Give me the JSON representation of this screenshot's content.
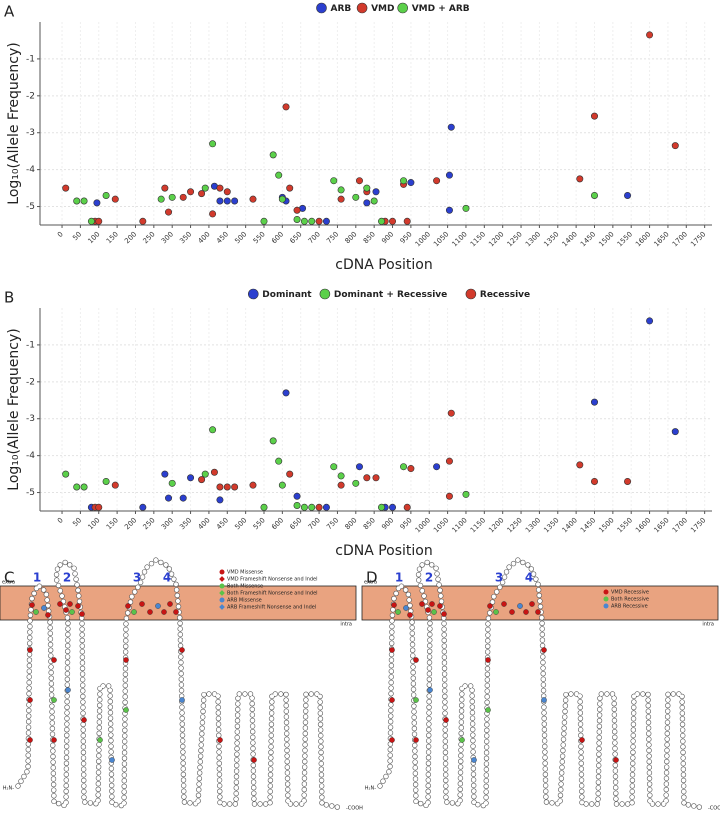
{
  "panel_labels": [
    "A",
    "B",
    "C",
    "D"
  ],
  "chart_data": [
    {
      "type": "scatter",
      "legend": "top",
      "grid": true,
      "xlabel": "cDNA Position",
      "ylabel": "Log₁₀(Allele Frequency)",
      "xlim": [
        -60,
        1770
      ],
      "ylim": [
        -5.5,
        0
      ],
      "xticks": [
        0,
        50,
        100,
        150,
        200,
        250,
        300,
        350,
        400,
        450,
        500,
        550,
        600,
        650,
        700,
        750,
        800,
        850,
        900,
        950,
        1000,
        1050,
        1100,
        1150,
        1200,
        1250,
        1300,
        1350,
        1400,
        1450,
        1500,
        1550,
        1600,
        1650,
        1700,
        1750
      ],
      "yticks": [
        -1,
        -2,
        -3,
        -4,
        -5
      ],
      "series": [
        {
          "name": "ARB",
          "color": "#2b3fcf",
          "x": [
            95,
            415,
            430,
            450,
            470,
            600,
            610,
            655,
            720,
            830,
            855,
            950,
            1055,
            1060,
            1055,
            1540
          ],
          "values": [
            -4.9,
            -4.45,
            -4.85,
            -4.85,
            -4.85,
            -4.75,
            -4.85,
            -5.05,
            -5.4,
            -4.9,
            -4.6,
            -4.35,
            -4.15,
            -2.85,
            -5.1,
            -4.7
          ]
        },
        {
          "name": "VMD",
          "color": "#d23a2c",
          "x": [
            10,
            90,
            100,
            145,
            220,
            280,
            290,
            330,
            350,
            380,
            410,
            430,
            450,
            520,
            610,
            620,
            640,
            700,
            760,
            810,
            830,
            880,
            900,
            930,
            940,
            1020,
            1410,
            1450,
            1600,
            1670
          ],
          "values": [
            -4.5,
            -5.4,
            -5.4,
            -4.8,
            -5.4,
            -4.5,
            -5.15,
            -4.75,
            -4.6,
            -4.65,
            -5.2,
            -4.5,
            -4.6,
            -4.8,
            -2.3,
            -4.5,
            -5.1,
            -5.4,
            -4.8,
            -4.3,
            -4.6,
            -5.4,
            -5.4,
            -4.4,
            -5.4,
            -4.3,
            -4.25,
            -2.55,
            -0.35,
            -3.35
          ]
        },
        {
          "name": "VMD + ARB",
          "color": "#5bd04a",
          "x": [
            40,
            60,
            80,
            120,
            270,
            300,
            390,
            410,
            550,
            575,
            590,
            600,
            640,
            660,
            680,
            740,
            760,
            800,
            830,
            850,
            870,
            930,
            1100,
            1450
          ],
          "values": [
            -4.85,
            -4.85,
            -5.4,
            -4.7,
            -4.8,
            -4.75,
            -4.5,
            -3.3,
            -5.4,
            -3.6,
            -4.15,
            -4.8,
            -5.35,
            -5.4,
            -5.4,
            -4.3,
            -4.55,
            -4.75,
            -4.5,
            -4.85,
            -5.4,
            -4.3,
            -5.05,
            -4.7
          ]
        }
      ]
    },
    {
      "type": "scatter",
      "legend": "top",
      "grid": true,
      "xlabel": "cDNA Position",
      "ylabel": "Log₁₀(Allele Frequency)",
      "xlim": [
        -60,
        1770
      ],
      "ylim": [
        -5.5,
        0
      ],
      "xticks": [
        0,
        50,
        100,
        150,
        200,
        250,
        300,
        350,
        400,
        450,
        500,
        550,
        600,
        650,
        700,
        750,
        800,
        850,
        900,
        950,
        1000,
        1050,
        1100,
        1150,
        1200,
        1250,
        1300,
        1350,
        1400,
        1450,
        1500,
        1550,
        1600,
        1650,
        1700,
        1750
      ],
      "yticks": [
        -1,
        -2,
        -3,
        -4,
        -5
      ],
      "series": [
        {
          "name": "Dominant",
          "color": "#2b3fcf",
          "x": [
            80,
            220,
            280,
            290,
            330,
            350,
            430,
            610,
            640,
            720,
            810,
            880,
            900,
            1020,
            1450,
            1600,
            1670
          ],
          "values": [
            -5.4,
            -5.4,
            -4.5,
            -5.15,
            -5.15,
            -4.6,
            -5.2,
            -2.3,
            -5.1,
            -5.4,
            -4.3,
            -5.4,
            -5.4,
            -4.3,
            -2.55,
            -0.35,
            -3.35
          ]
        },
        {
          "name": "Dominant + Recessive",
          "color": "#5bd04a",
          "x": [
            10,
            40,
            60,
            120,
            300,
            390,
            410,
            550,
            575,
            590,
            600,
            640,
            660,
            680,
            740,
            760,
            800,
            870,
            930,
            1100
          ],
          "values": [
            -4.5,
            -4.85,
            -4.85,
            -4.7,
            -4.75,
            -4.5,
            -3.3,
            -5.4,
            -3.6,
            -4.15,
            -4.8,
            -5.35,
            -5.4,
            -5.4,
            -4.3,
            -4.55,
            -4.75,
            -5.4,
            -4.3,
            -5.05
          ]
        },
        {
          "name": "Recessive",
          "color": "#d23a2c",
          "x": [
            90,
            100,
            145,
            380,
            415,
            430,
            450,
            470,
            520,
            620,
            700,
            760,
            830,
            855,
            940,
            950,
            1055,
            1060,
            1055,
            1410,
            1450,
            1540
          ],
          "values": [
            -5.4,
            -5.4,
            -4.8,
            -4.65,
            -4.45,
            -4.85,
            -4.85,
            -4.85,
            -4.8,
            -4.5,
            -5.4,
            -4.8,
            -4.6,
            -4.6,
            -5.4,
            -4.35,
            -4.15,
            -2.85,
            -5.1,
            -4.25,
            -4.7,
            -4.7
          ]
        }
      ]
    }
  ],
  "topology": [
    {
      "extra": "extra",
      "intra": "intra",
      "helices": [
        "1",
        "2",
        "3",
        "4"
      ],
      "n_term": "H₂N-",
      "c_term": "-COOH",
      "legend": [
        {
          "label": "VMD Missense",
          "color": "#c81414",
          "shape": "circle"
        },
        {
          "label": "VMD Frameshift Nonsense and Indel",
          "color": "#c81414",
          "shape": "diamond"
        },
        {
          "label": "Both Missense",
          "color": "#5bc24a",
          "shape": "circle"
        },
        {
          "label": "Both Frameshift Nonsense and Indel",
          "color": "#5bc24a",
          "shape": "diamond"
        },
        {
          "label": "ARB Missense",
          "color": "#4a86d0",
          "shape": "circle"
        },
        {
          "label": "ARB Frameshift Nonsense and Indel",
          "color": "#4a86d0",
          "shape": "diamond"
        }
      ]
    },
    {
      "extra": "extra",
      "intra": "intra",
      "helices": [
        "1",
        "2",
        "3",
        "4"
      ],
      "n_term": "H₂N-",
      "c_term": "-COOH",
      "legend": [
        {
          "label": "VMD Recessive",
          "color": "#c81414",
          "shape": "circle"
        },
        {
          "label": "Both Recessive",
          "color": "#5bc24a",
          "shape": "circle"
        },
        {
          "label": "ARB Recessive",
          "color": "#4a86d0",
          "shape": "circle"
        }
      ]
    }
  ]
}
